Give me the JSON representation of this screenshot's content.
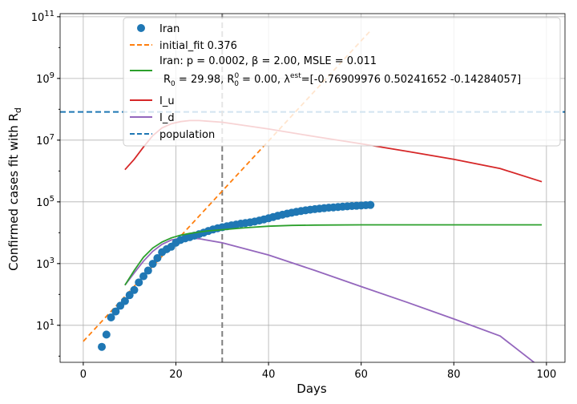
{
  "chart_data": {
    "type": "line",
    "xlabel": "Days",
    "ylabel": "Confirmed cases fit with R",
    "ylabel_subscript": "d",
    "xlim": [
      -5,
      104
    ],
    "ylim_log10": [
      -0.2,
      11.1
    ],
    "yscale": "log",
    "grid": true,
    "x_ticks": [
      0,
      20,
      40,
      60,
      80,
      100
    ],
    "y_ticks": [
      {
        "exp": 1,
        "base": "10",
        "sup": "1"
      },
      {
        "exp": 3,
        "base": "10",
        "sup": "3"
      },
      {
        "exp": 5,
        "base": "10",
        "sup": "5"
      },
      {
        "exp": 7,
        "base": "10",
        "sup": "7"
      },
      {
        "exp": 9,
        "base": "10",
        "sup": "9"
      },
      {
        "exp": 11,
        "base": "10",
        "sup": "11"
      }
    ],
    "vline": {
      "x": 30,
      "color": "#7f7f7f",
      "style": "dashed"
    },
    "legend": {
      "placement": "top-center",
      "entries": [
        {
          "key": "iran",
          "label": "Iran",
          "color": "#1f77b4",
          "kind": "marker"
        },
        {
          "key": "initial_fit",
          "label": "initial_fit 0.376",
          "color": "#ff7f0e",
          "kind": "dashed"
        },
        {
          "key": "fit",
          "label_line1": "Iran: p = 0.0002,  β =  2.00, MSLE = 0.011",
          "label_line2_pre": "R",
          "label_line2_sub": "0",
          "label_line2_mid": " = 29.98, R",
          "label_line2_sup": "0",
          "label_line2_sub2": "0",
          "label_line2_mid2": " = 0.00, λ",
          "label_line2_sup2": "est",
          "label_line2_post": "=[-0.76909976  0.50241652 -0.14284057]",
          "color": "#2ca02c",
          "kind": "line"
        },
        {
          "key": "i_u",
          "label": "I_u",
          "color": "#d62728",
          "kind": "line"
        },
        {
          "key": "i_d",
          "label": "I_d",
          "color": "#9467bd",
          "kind": "line"
        },
        {
          "key": "population",
          "label": "population",
          "color": "#1f77b4",
          "kind": "dashed"
        }
      ]
    },
    "series": [
      {
        "key": "iran",
        "name": "Iran",
        "kind": "scatter",
        "color": "#1f77b4",
        "points": [
          [
            4,
            2
          ],
          [
            5,
            5
          ],
          [
            6,
            18
          ],
          [
            7,
            28
          ],
          [
            8,
            43
          ],
          [
            9,
            61
          ],
          [
            10,
            95
          ],
          [
            11,
            139
          ],
          [
            12,
            245
          ],
          [
            13,
            388
          ],
          [
            14,
            593
          ],
          [
            15,
            978
          ],
          [
            16,
            1501
          ],
          [
            17,
            2336
          ],
          [
            18,
            2922
          ],
          [
            19,
            3513
          ],
          [
            20,
            4747
          ],
          [
            21,
            5823
          ],
          [
            22,
            6566
          ],
          [
            23,
            7161
          ],
          [
            24,
            8042
          ],
          [
            25,
            9000
          ],
          [
            26,
            10075
          ],
          [
            27,
            11364
          ],
          [
            28,
            12729
          ],
          [
            29,
            13938
          ],
          [
            30,
            14991
          ],
          [
            31,
            16169
          ],
          [
            32,
            17361
          ],
          [
            33,
            18407
          ],
          [
            34,
            19644
          ],
          [
            35,
            20610
          ],
          [
            36,
            21638
          ],
          [
            37,
            23049
          ],
          [
            38,
            24811
          ],
          [
            39,
            27017
          ],
          [
            40,
            29406
          ],
          [
            41,
            32332
          ],
          [
            42,
            35408
          ],
          [
            43,
            38309
          ],
          [
            44,
            41495
          ],
          [
            45,
            44605
          ],
          [
            46,
            47593
          ],
          [
            47,
            50468
          ],
          [
            48,
            53183
          ],
          [
            49,
            55743
          ],
          [
            50,
            58226
          ],
          [
            51,
            60500
          ],
          [
            52,
            62589
          ],
          [
            53,
            64586
          ],
          [
            54,
            66220
          ],
          [
            55,
            68192
          ],
          [
            56,
            70029
          ],
          [
            57,
            71686
          ],
          [
            58,
            73303
          ],
          [
            59,
            74877
          ],
          [
            60,
            76389
          ],
          [
            61,
            77995
          ],
          [
            62,
            79494
          ]
        ]
      },
      {
        "key": "initial_fit",
        "name": "initial_fit 0.376",
        "kind": "dashed",
        "color": "#ff7f0e",
        "points": [
          [
            0,
            3
          ],
          [
            62,
            35000000000.0
          ]
        ]
      },
      {
        "key": "fit",
        "kind": "line",
        "color": "#2ca02c",
        "points": [
          [
            9,
            200
          ],
          [
            11,
            600
          ],
          [
            13,
            1600
          ],
          [
            15,
            3200
          ],
          [
            17,
            5000
          ],
          [
            19,
            6800
          ],
          [
            21,
            8300
          ],
          [
            23,
            9500
          ],
          [
            25,
            10500
          ],
          [
            27,
            11500
          ],
          [
            30,
            12500
          ],
          [
            35,
            14500
          ],
          [
            40,
            16300
          ],
          [
            45,
            17300
          ],
          [
            50,
            17700
          ],
          [
            60,
            18000
          ],
          [
            80,
            18000
          ],
          [
            99,
            18000
          ]
        ]
      },
      {
        "key": "i_u",
        "kind": "line",
        "color": "#d62728",
        "points": [
          [
            9,
            1100000
          ],
          [
            11,
            2400000
          ],
          [
            13,
            6000000
          ],
          [
            15,
            14000000
          ],
          [
            17,
            25000000
          ],
          [
            19,
            34000000
          ],
          [
            21,
            40000000
          ],
          [
            23,
            43000000
          ],
          [
            25,
            43000000
          ],
          [
            30,
            38000000
          ],
          [
            40,
            23000000
          ],
          [
            50,
            13000000
          ],
          [
            60,
            7600000
          ],
          [
            70,
            4300000
          ],
          [
            80,
            2400000
          ],
          [
            90,
            1200000
          ],
          [
            99,
            450000
          ]
        ]
      },
      {
        "key": "i_d",
        "kind": "line",
        "color": "#9467bd",
        "points": [
          [
            9,
            200
          ],
          [
            11,
            500
          ],
          [
            13,
            1200
          ],
          [
            15,
            2500
          ],
          [
            17,
            4200
          ],
          [
            19,
            5800
          ],
          [
            21,
            6600
          ],
          [
            23,
            6800
          ],
          [
            25,
            6400
          ],
          [
            30,
            4700
          ],
          [
            40,
            1900
          ],
          [
            50,
            600
          ],
          [
            60,
            180
          ],
          [
            70,
            55
          ],
          [
            80,
            16
          ],
          [
            90,
            4.5
          ],
          [
            99,
            0.4
          ]
        ]
      },
      {
        "key": "population",
        "kind": "hline",
        "color": "#1f77b4",
        "y": 82000000
      }
    ]
  }
}
